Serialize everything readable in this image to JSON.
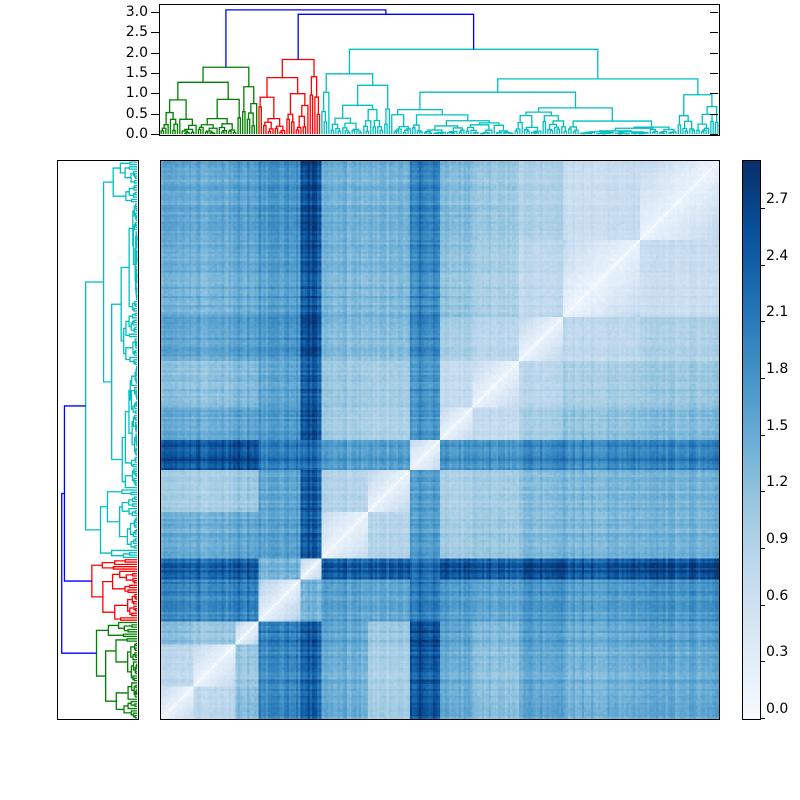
{
  "figure": {
    "background": "#ffffff",
    "kind": "hierarchical clustering heatmap with dendrograms and colorbar"
  },
  "chart_data": {
    "type": "heatmap",
    "variant": "clustermap-distance-matrix",
    "title": "",
    "xlabel": "",
    "ylabel": "",
    "grid": false,
    "n_items": 240,
    "row_order": "reverse_of_columns",
    "value_range": {
      "vmin": 0.0,
      "vmax": 2.95
    },
    "colormap": {
      "name": "Blues",
      "anchors": [
        "#f7fbff",
        "#deebf7",
        "#c6dbef",
        "#9ecae1",
        "#6baed6",
        "#4292c6",
        "#2171b5",
        "#08519c",
        "#08306b"
      ]
    },
    "top_axis": {
      "ymax": 3.12,
      "ticks": [
        {
          "v": 3.0,
          "label": "3.0"
        },
        {
          "v": 2.5,
          "label": "2.5"
        },
        {
          "v": 2.0,
          "label": "2.0"
        },
        {
          "v": 1.5,
          "label": "1.5"
        },
        {
          "v": 1.0,
          "label": "1.0"
        },
        {
          "v": 0.5,
          "label": "0.5"
        },
        {
          "v": 0.0,
          "label": "0.0"
        }
      ]
    },
    "colorbar": {
      "position": "right",
      "ticks": [
        {
          "v": 2.7,
          "label": "2.7"
        },
        {
          "v": 2.4,
          "label": "2.4"
        },
        {
          "v": 2.1,
          "label": "2.1"
        },
        {
          "v": 1.8,
          "label": "1.8"
        },
        {
          "v": 1.5,
          "label": "1.5"
        },
        {
          "v": 1.2,
          "label": "1.2"
        },
        {
          "v": 0.9,
          "label": "0.9"
        },
        {
          "v": 0.6,
          "label": "0.6"
        },
        {
          "v": 0.3,
          "label": "0.3"
        },
        {
          "v": 0.0,
          "label": "0.0"
        }
      ]
    },
    "dendrogram": {
      "line_width": 1.3,
      "link_color_above_threshold": "#0000ff",
      "seed": 1337,
      "clusters": [
        {
          "name": "green",
          "color": "#008000",
          "item_start": 0,
          "item_end": 42,
          "root_height": 1.64
        },
        {
          "name": "red",
          "color": "#ff0000",
          "item_start": 42,
          "item_end": 69,
          "root_height": 1.83
        },
        {
          "name": "cyan",
          "color": "#00bfbf",
          "item_start": 69,
          "item_end": 240,
          "root_height": 2.08
        }
      ],
      "merges": [
        {
          "a": "red",
          "b": "cyan",
          "height": 2.94
        },
        {
          "a": "green",
          "b": "red+cyan",
          "height": 3.05
        }
      ]
    },
    "matrix_model": {
      "segments": [
        {
          "name": "G1",
          "start": 0.0,
          "end": 0.06
        },
        {
          "name": "G2",
          "start": 0.06,
          "end": 0.135
        },
        {
          "name": "G3",
          "start": 0.135,
          "end": 0.175
        },
        {
          "name": "R1",
          "start": 0.175,
          "end": 0.25
        },
        {
          "name": "R2",
          "start": 0.25,
          "end": 0.287
        },
        {
          "name": "C1",
          "start": 0.287,
          "end": 0.37
        },
        {
          "name": "C2",
          "start": 0.37,
          "end": 0.444
        },
        {
          "name": "C3",
          "start": 0.444,
          "end": 0.498
        },
        {
          "name": "C4",
          "start": 0.498,
          "end": 0.56
        },
        {
          "name": "C5",
          "start": 0.56,
          "end": 0.64
        },
        {
          "name": "C6",
          "start": 0.64,
          "end": 0.72
        },
        {
          "name": "C7",
          "start": 0.72,
          "end": 0.86
        },
        {
          "name": "C8",
          "start": 0.86,
          "end": 1.0
        }
      ],
      "block_distances": [
        [
          0.4,
          0.85,
          1.3,
          2.0,
          2.45,
          1.55,
          1.05,
          2.6,
          1.55,
          1.3,
          1.6,
          1.5,
          1.6
        ],
        [
          0.85,
          0.4,
          1.15,
          1.95,
          2.4,
          1.5,
          1.0,
          2.55,
          1.5,
          1.25,
          1.55,
          1.45,
          1.55
        ],
        [
          1.3,
          1.15,
          0.45,
          2.05,
          2.5,
          1.6,
          1.1,
          2.65,
          1.6,
          1.35,
          1.65,
          1.55,
          1.65
        ],
        [
          2.0,
          1.95,
          2.05,
          0.5,
          1.4,
          1.65,
          1.55,
          2.1,
          1.7,
          1.6,
          1.75,
          1.7,
          1.8
        ],
        [
          2.45,
          2.4,
          2.5,
          1.4,
          0.45,
          2.5,
          2.45,
          2.3,
          2.55,
          2.5,
          2.6,
          2.55,
          2.65
        ],
        [
          1.55,
          1.5,
          1.6,
          1.65,
          2.5,
          0.4,
          0.9,
          1.75,
          1.05,
          1.15,
          1.3,
          1.4,
          1.45
        ],
        [
          1.05,
          1.0,
          1.1,
          1.55,
          2.45,
          0.9,
          0.4,
          1.7,
          0.95,
          1.05,
          1.25,
          1.35,
          1.4
        ],
        [
          2.6,
          2.55,
          2.65,
          2.1,
          2.3,
          1.75,
          1.7,
          0.4,
          1.8,
          1.85,
          1.95,
          2.0,
          2.05
        ],
        [
          1.55,
          1.5,
          1.6,
          1.7,
          2.55,
          1.05,
          0.95,
          1.8,
          0.4,
          0.75,
          1.0,
          1.2,
          1.3
        ],
        [
          1.3,
          1.25,
          1.35,
          1.6,
          2.5,
          1.15,
          1.05,
          1.85,
          0.75,
          0.4,
          0.85,
          1.05,
          1.15
        ],
        [
          1.6,
          1.55,
          1.65,
          1.75,
          2.6,
          1.3,
          1.25,
          1.95,
          1.0,
          0.85,
          0.4,
          0.8,
          0.95
        ],
        [
          1.5,
          1.45,
          1.55,
          1.7,
          2.55,
          1.4,
          1.35,
          2.0,
          1.2,
          1.05,
          0.8,
          0.4,
          0.7
        ],
        [
          1.6,
          1.55,
          1.65,
          1.8,
          2.65,
          1.45,
          1.4,
          2.05,
          1.3,
          1.15,
          0.95,
          0.7,
          0.4
        ]
      ],
      "noise": {
        "seed": 917,
        "item_amplitude": 0.1,
        "pair_amplitude": 0.06,
        "within_spread": 1.5
      }
    }
  }
}
